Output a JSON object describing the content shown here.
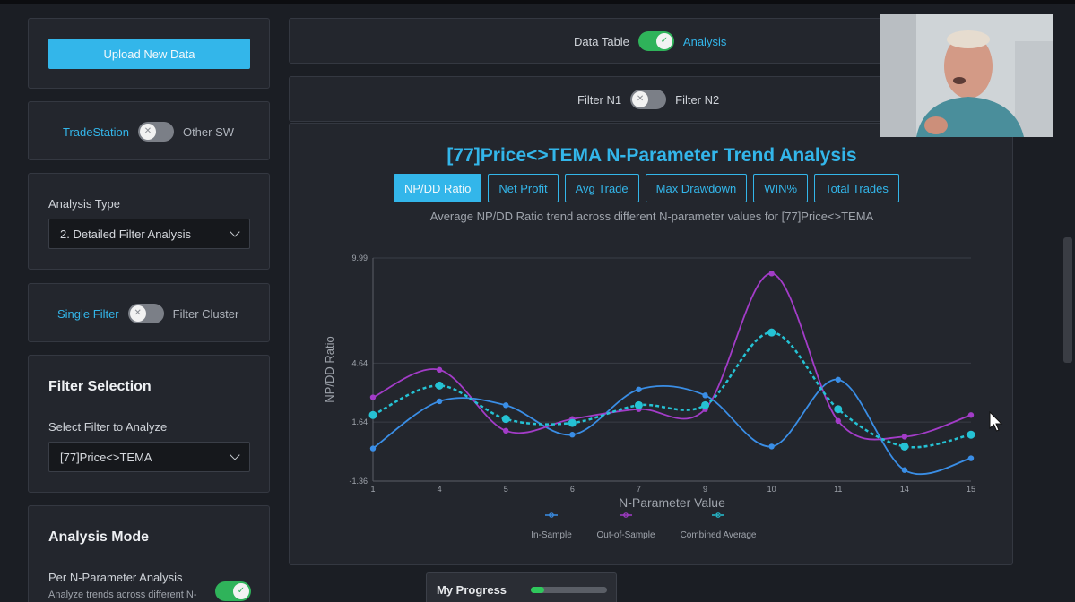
{
  "upload": {
    "label": "Upload New Data"
  },
  "software_toggle": {
    "left": "TradeStation",
    "right": "Other SW",
    "state": "off"
  },
  "analysis_type": {
    "label": "Analysis Type",
    "value": "2. Detailed Filter Analysis"
  },
  "filter_mode_toggle": {
    "left": "Single Filter",
    "right": "Filter Cluster",
    "state": "off"
  },
  "filter_selection": {
    "title": "Filter Selection",
    "label": "Select Filter to Analyze",
    "value": "[77]Price<>TEMA"
  },
  "analysis_mode": {
    "title": "Analysis Mode",
    "option_label": "Per N-Parameter Analysis",
    "option_desc": "Analyze trends across different N-",
    "state": "on"
  },
  "view_toggle": {
    "left": "Data Table",
    "right": "Analysis",
    "state": "on"
  },
  "filter_n_toggle": {
    "left": "Filter N1",
    "right": "Filter N2",
    "state": "off"
  },
  "chart_header": {
    "title": "[77]Price<>TEMA N-Parameter Trend Analysis",
    "subtitle": "Average NP/DD Ratio trend across different N-parameter values for [77]Price<>TEMA",
    "tabs": [
      "NP/DD Ratio",
      "Net Profit",
      "Avg Trade",
      "Max Drawdown",
      "WIN%",
      "Total Trades"
    ],
    "active_tab": 0
  },
  "chart_data": {
    "type": "line",
    "xlabel": "N-Parameter Value",
    "ylabel": "NP/DD Ratio",
    "categories": [
      "1",
      "4",
      "5",
      "6",
      "7",
      "9",
      "10",
      "11",
      "14",
      "15"
    ],
    "y_ticks": [
      "9.99",
      "4.64",
      "1.64",
      "-1.36"
    ],
    "ylim": [
      -1.36,
      9.99
    ],
    "grid": true,
    "legend_position": "bottom",
    "series": [
      {
        "name": "In-Sample",
        "color": "#3a8ee6",
        "dashed": false,
        "values": [
          0.3,
          2.7,
          2.5,
          1.0,
          3.3,
          3.0,
          0.4,
          3.8,
          -0.8,
          -0.2
        ]
      },
      {
        "name": "Out-of-Sample",
        "color": "#a33cc8",
        "dashed": false,
        "values": [
          2.9,
          4.3,
          1.2,
          1.8,
          2.3,
          2.3,
          9.2,
          1.7,
          0.9,
          2.0
        ]
      },
      {
        "name": "Combined Average",
        "color": "#25c2d4",
        "dashed": true,
        "values": [
          2.0,
          3.5,
          1.8,
          1.6,
          2.5,
          2.5,
          6.2,
          2.3,
          0.4,
          1.0
        ]
      }
    ]
  },
  "progress": {
    "label": "My Progress",
    "value": 0.18
  }
}
